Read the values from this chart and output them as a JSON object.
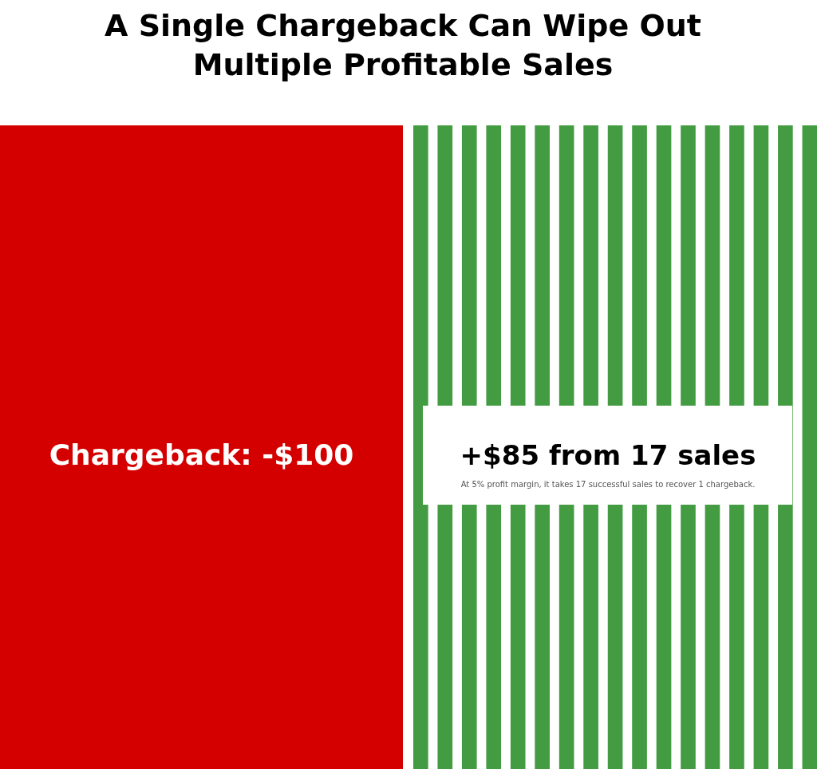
{
  "chart_data": {
    "type": "other",
    "title": "A Single Chargeback Can Wipe Out Multiple Profitable Sales",
    "categories": [
      null,
      null
    ],
    "values": [
      -100,
      85
    ],
    "colors": [
      "#d40000",
      "#439c41"
    ],
    "value_labels": [
      "Chargeback: -$100",
      "+$85 from 17 sales"
    ],
    "annotations": [
      "At 5% profit margin, it takes 17 successful sales to recover 1 chargeback."
    ]
  }
}
